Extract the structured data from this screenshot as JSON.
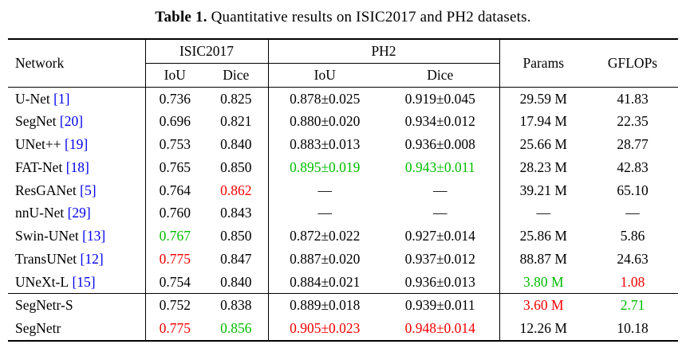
{
  "caption": {
    "label": "Table 1.",
    "text": "Quantitative results on ISIC2017 and PH2 datasets."
  },
  "colors": {
    "red": "#f40000",
    "green": "#00bd00",
    "blue": "#0000ee",
    "black": "#000000"
  },
  "header": {
    "network": "Network",
    "isic2017": "ISIC2017",
    "ph2": "PH2",
    "iou": "IoU",
    "dice": "Dice",
    "params": "Params",
    "gflops": "GFLOPs"
  },
  "rows": [
    {
      "network": "U-Net",
      "cite": "[1]",
      "cells": [
        {
          "t": "0.736"
        },
        {
          "t": "0.825"
        },
        {
          "t": "0.878±0.025"
        },
        {
          "t": "0.919±0.045"
        },
        {
          "t": "29.59 M"
        },
        {
          "t": "41.83"
        }
      ]
    },
    {
      "network": "SegNet",
      "cite": "[20]",
      "cells": [
        {
          "t": "0.696"
        },
        {
          "t": "0.821"
        },
        {
          "t": "0.880±0.020"
        },
        {
          "t": "0.934±0.012"
        },
        {
          "t": "17.94 M"
        },
        {
          "t": "22.35"
        }
      ]
    },
    {
      "network": "UNet++",
      "cite": "[19]",
      "cells": [
        {
          "t": "0.753"
        },
        {
          "t": "0.840"
        },
        {
          "t": "0.883±0.013"
        },
        {
          "t": "0.936±0.008"
        },
        {
          "t": "25.66 M"
        },
        {
          "t": "28.77"
        }
      ]
    },
    {
      "network": "FAT-Net",
      "cite": "[18]",
      "cells": [
        {
          "t": "0.765"
        },
        {
          "t": "0.850"
        },
        {
          "t": "0.895±0.019",
          "c": "green"
        },
        {
          "t": "0.943±0.011",
          "c": "green"
        },
        {
          "t": "28.23 M"
        },
        {
          "t": "42.83"
        }
      ]
    },
    {
      "network": "ResGANet",
      "cite": "[5]",
      "cells": [
        {
          "t": "0.764"
        },
        {
          "t": "0.862",
          "c": "red"
        },
        {
          "t": "—"
        },
        {
          "t": "—"
        },
        {
          "t": "39.21 M"
        },
        {
          "t": "65.10"
        }
      ]
    },
    {
      "network": "nnU-Net",
      "cite": "[29]",
      "cells": [
        {
          "t": "0.760"
        },
        {
          "t": "0.843"
        },
        {
          "t": "—"
        },
        {
          "t": "—"
        },
        {
          "t": "—"
        },
        {
          "t": "—"
        }
      ]
    },
    {
      "network": "Swin-UNet",
      "cite": "[13]",
      "cells": [
        {
          "t": "0.767",
          "c": "green"
        },
        {
          "t": "0.850"
        },
        {
          "t": "0.872±0.022"
        },
        {
          "t": "0.927±0.014"
        },
        {
          "t": "25.86 M"
        },
        {
          "t": "5.86"
        }
      ]
    },
    {
      "network": "TransUNet",
      "cite": "[12]",
      "cells": [
        {
          "t": "0.775",
          "c": "red"
        },
        {
          "t": "0.847"
        },
        {
          "t": "0.887±0.020"
        },
        {
          "t": "0.937±0.012"
        },
        {
          "t": "88.87 M"
        },
        {
          "t": "24.63"
        }
      ]
    },
    {
      "network": "UNeXt-L",
      "cite": "[15]",
      "cells": [
        {
          "t": "0.754"
        },
        {
          "t": "0.840"
        },
        {
          "t": "0.884±0.021"
        },
        {
          "t": "0.936±0.013"
        },
        {
          "t": "3.80 M",
          "c": "green"
        },
        {
          "t": "1.08",
          "c": "red"
        }
      ]
    },
    {
      "network": "SegNetr-S",
      "rule_above": true,
      "cells": [
        {
          "t": "0.752"
        },
        {
          "t": "0.838"
        },
        {
          "t": "0.889±0.018"
        },
        {
          "t": "0.939±0.011"
        },
        {
          "t": "3.60 M",
          "c": "red"
        },
        {
          "t": "2.71",
          "c": "green"
        }
      ]
    },
    {
      "network": "SegNetr",
      "cells": [
        {
          "t": "0.775",
          "c": "red"
        },
        {
          "t": "0.856",
          "c": "green"
        },
        {
          "t": "0.905±0.023",
          "c": "red"
        },
        {
          "t": "0.948±0.014",
          "c": "red"
        },
        {
          "t": "12.26 M"
        },
        {
          "t": "10.18"
        }
      ]
    }
  ]
}
